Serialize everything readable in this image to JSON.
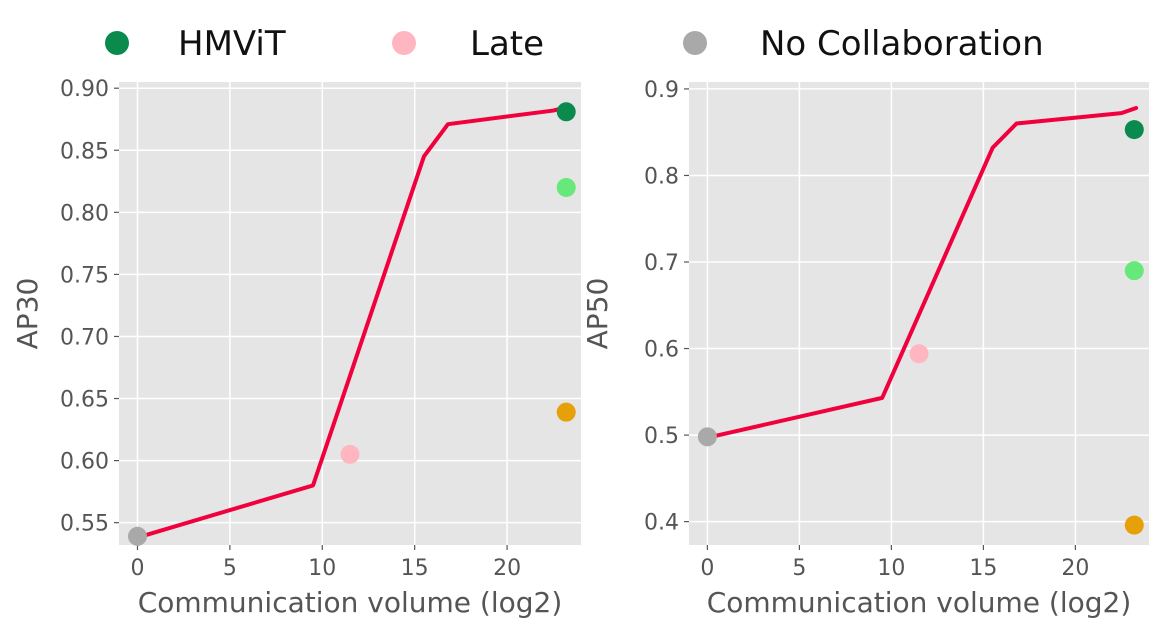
{
  "legend": [
    {
      "label": "HMViT",
      "color": "#0b8a4d"
    },
    {
      "label": "Late",
      "color": "#ffb6c1"
    },
    {
      "label": "No Collaboration",
      "color": "#a9a9a9"
    }
  ],
  "chart_data": [
    {
      "type": "line",
      "xlabel": "Communication volume (log2)",
      "ylabel": "AP30",
      "xlim": [
        -1,
        24
      ],
      "ylim": [
        0.532,
        0.905
      ],
      "xticks": [
        0,
        5,
        10,
        15,
        20
      ],
      "yticks": [
        "0.55",
        "0.60",
        "0.65",
        "0.70",
        "0.75",
        "0.80",
        "0.85",
        "0.90"
      ],
      "grid": true,
      "line": {
        "color": "#f0003c",
        "x": [
          0,
          9.5,
          15.5,
          16.8,
          22.5,
          23.3
        ],
        "y": [
          0.538,
          0.58,
          0.845,
          0.871,
          0.882,
          0.885
        ]
      },
      "points": [
        {
          "x": 0,
          "y": 0.539,
          "color": "#a9a9a9"
        },
        {
          "x": 11.5,
          "y": 0.605,
          "color": "#ffb6c1"
        },
        {
          "x": 23.2,
          "y": 0.881,
          "color": "#0b8a4d"
        },
        {
          "x": 23.2,
          "y": 0.82,
          "color": "#66e87a"
        },
        {
          "x": 23.2,
          "y": 0.639,
          "color": "#e6a00a"
        }
      ]
    },
    {
      "type": "line",
      "xlabel": "Communication volume (log2)",
      "ylabel": "AP50",
      "xlim": [
        -1,
        24
      ],
      "ylim": [
        0.373,
        0.908
      ],
      "xticks": [
        0,
        5,
        10,
        15,
        20
      ],
      "yticks": [
        "0.4",
        "0.5",
        "0.6",
        "0.7",
        "0.8",
        "0.9"
      ],
      "grid": true,
      "line": {
        "color": "#f0003c",
        "x": [
          0,
          9.5,
          15.5,
          16.8,
          22.5,
          23.3
        ],
        "y": [
          0.497,
          0.543,
          0.832,
          0.86,
          0.872,
          0.878
        ]
      },
      "points": [
        {
          "x": 0,
          "y": 0.498,
          "color": "#a9a9a9"
        },
        {
          "x": 11.5,
          "y": 0.594,
          "color": "#ffb6c1"
        },
        {
          "x": 23.2,
          "y": 0.853,
          "color": "#0b8a4d"
        },
        {
          "x": 23.2,
          "y": 0.69,
          "color": "#66e87a"
        },
        {
          "x": 23.2,
          "y": 0.396,
          "color": "#e6a00a"
        }
      ]
    }
  ]
}
